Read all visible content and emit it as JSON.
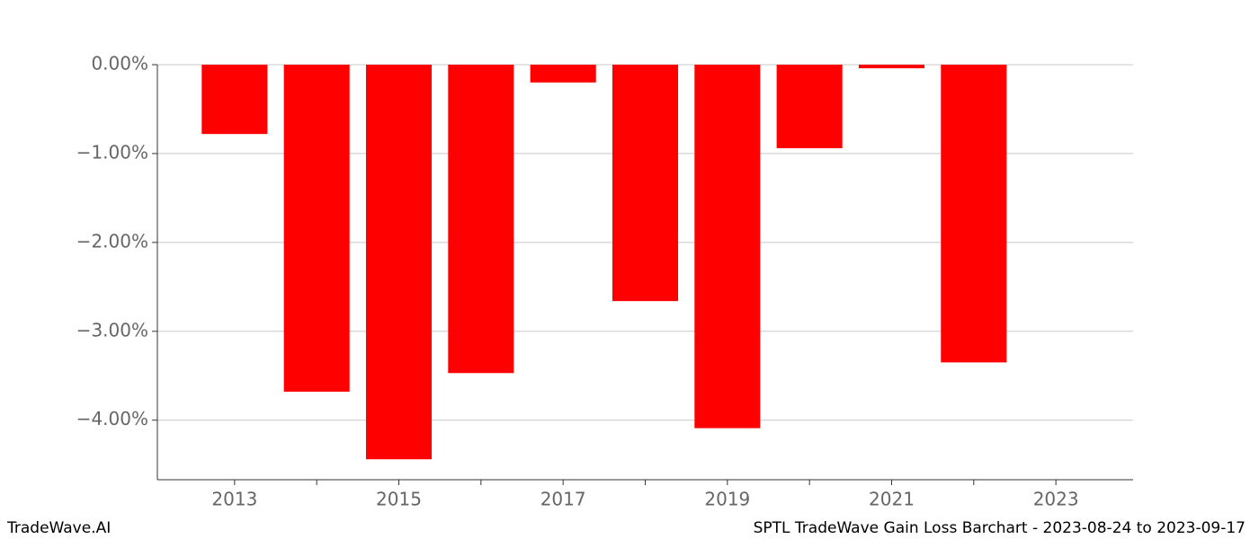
{
  "chart_data": {
    "type": "bar",
    "title": "SPTL TradeWave Gain Loss Barchart - 2023-08-24 to 2023-09-17",
    "brand": "TradeWave.AI",
    "x": [
      2013,
      2014,
      2015,
      2016,
      2017,
      2018,
      2019,
      2020,
      2021,
      2022
    ],
    "values": [
      -0.78,
      -3.68,
      -4.44,
      -3.47,
      -0.2,
      -2.66,
      -4.09,
      -0.94,
      -0.04,
      -3.35
    ],
    "color": "#ff0000",
    "xlim": [
      2012.06,
      2023.94
    ],
    "xticks": [
      2013,
      2015,
      2017,
      2019,
      2021,
      2023
    ],
    "xminorticks": [
      2014,
      2016,
      2018,
      2020,
      2022
    ],
    "ylim": [
      -4.67,
      0
    ],
    "yticks": [
      {
        "value": 0,
        "label": "0.00%"
      },
      {
        "value": -1,
        "label": "−1.00%"
      },
      {
        "value": -2,
        "label": "−2.00%"
      },
      {
        "value": -3,
        "label": "−3.00%"
      },
      {
        "value": -4,
        "label": "−4.00%"
      }
    ],
    "grid": true
  }
}
